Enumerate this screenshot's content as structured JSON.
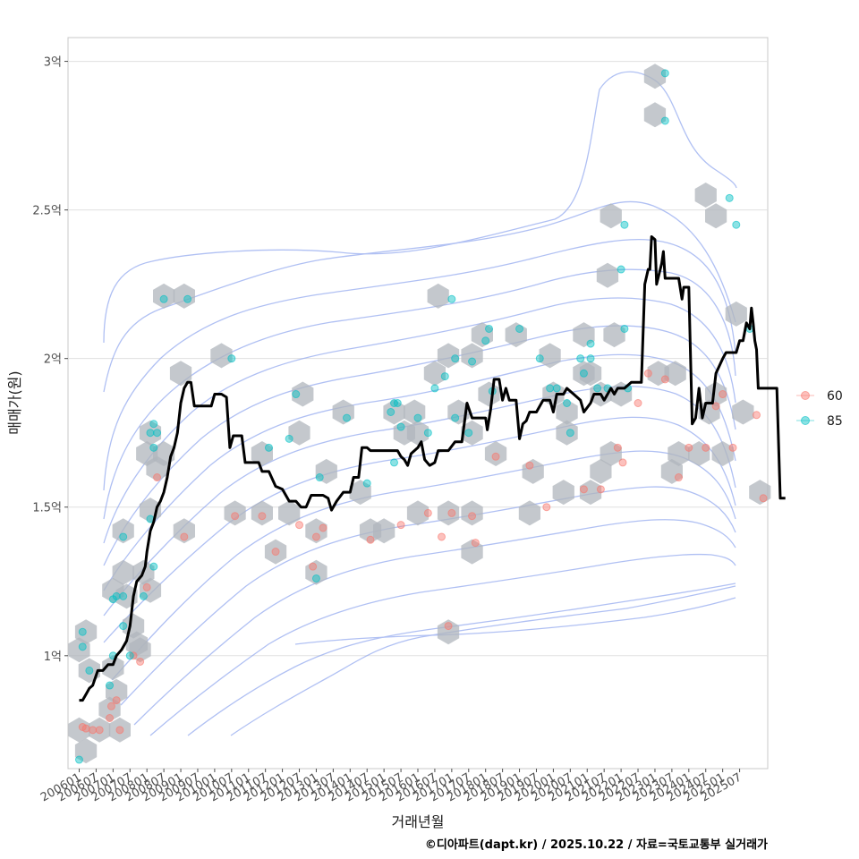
{
  "chart_data": {
    "type": "scatter",
    "xlabel": "거래년월",
    "ylabel": "매매가(원)",
    "caption": "©디아파트(dapt.kr) / 2025.10.22 / 자료=국토교통부 실거래가",
    "x_tick_labels": [
      "200601",
      "200607",
      "200701",
      "200707",
      "200801",
      "200807",
      "200901",
      "200907",
      "201001",
      "201007",
      "201101",
      "201107",
      "201201",
      "201207",
      "201301",
      "201307",
      "201401",
      "201407",
      "201501",
      "201507",
      "201601",
      "201607",
      "201701",
      "201707",
      "201801",
      "201807",
      "201901",
      "201907",
      "202001",
      "202007",
      "202101",
      "202107",
      "202201",
      "202207",
      "202301",
      "202307",
      "202401",
      "202407",
      "202501",
      "202507"
    ],
    "y_ticks": [
      {
        "value": 1.0,
        "label": "1억"
      },
      {
        "value": 1.5,
        "label": "1.5억"
      },
      {
        "value": 2.0,
        "label": "2억"
      },
      {
        "value": 2.5,
        "label": "2.5억"
      },
      {
        "value": 3.0,
        "label": "3억"
      }
    ],
    "xlim": [
      2005.67,
      2026.33
    ],
    "ylim": [
      0.62,
      3.08
    ],
    "grid": true,
    "legend": {
      "position": "right",
      "entries": [
        {
          "label": "60",
          "color": "#F8766D"
        },
        {
          "label": "85",
          "color": "#00BFC4"
        }
      ]
    },
    "colors": {
      "series_60": "#F8766D",
      "series_85": "#00BFC4",
      "trend": "#000000",
      "hexbin": "#b0b6bc",
      "contour": "#8fa6ee",
      "grid": "#e0e0e0",
      "panel_border": "#c8c8c8"
    },
    "series": [
      {
        "name": "60",
        "points": [
          [
            2006.1,
            0.76
          ],
          [
            2006.2,
            0.755
          ],
          [
            2006.4,
            0.75
          ],
          [
            2006.6,
            0.75
          ],
          [
            2006.9,
            0.79
          ],
          [
            2006.95,
            0.83
          ],
          [
            2007.1,
            0.85
          ],
          [
            2007.2,
            0.75
          ],
          [
            2007.6,
            1.0
          ],
          [
            2007.8,
            0.98
          ],
          [
            2008.0,
            1.23
          ],
          [
            2008.3,
            1.6
          ],
          [
            2009.1,
            1.4
          ],
          [
            2010.6,
            1.47
          ],
          [
            2011.4,
            1.47
          ],
          [
            2011.8,
            1.35
          ],
          [
            2012.5,
            1.44
          ],
          [
            2012.9,
            1.3
          ],
          [
            2013.0,
            1.4
          ],
          [
            2013.2,
            1.43
          ],
          [
            2014.6,
            1.39
          ],
          [
            2015.5,
            1.44
          ],
          [
            2016.3,
            1.48
          ],
          [
            2016.7,
            1.4
          ],
          [
            2016.9,
            1.1
          ],
          [
            2017.0,
            1.48
          ],
          [
            2017.6,
            1.47
          ],
          [
            2017.7,
            1.38
          ],
          [
            2018.3,
            1.67
          ],
          [
            2019.3,
            1.64
          ],
          [
            2019.8,
            1.5
          ],
          [
            2020.9,
            1.56
          ],
          [
            2021.4,
            1.56
          ],
          [
            2021.9,
            1.7
          ],
          [
            2022.05,
            1.65
          ],
          [
            2022.5,
            1.85
          ],
          [
            2022.8,
            1.95
          ],
          [
            2023.3,
            1.93
          ],
          [
            2023.7,
            1.6
          ],
          [
            2024.0,
            1.7
          ],
          [
            2024.5,
            1.7
          ],
          [
            2024.8,
            1.84
          ],
          [
            2025.0,
            1.88
          ],
          [
            2025.3,
            1.7
          ],
          [
            2026.0,
            1.81
          ],
          [
            2026.2,
            1.53
          ]
        ]
      },
      {
        "name": "85",
        "points": [
          [
            2006.0,
            0.65
          ],
          [
            2006.3,
            0.95
          ],
          [
            2006.1,
            1.08
          ],
          [
            2006.1,
            1.03
          ],
          [
            2006.9,
            0.9
          ],
          [
            2007.0,
            1.0
          ],
          [
            2007.0,
            1.19
          ],
          [
            2007.1,
            1.2
          ],
          [
            2007.3,
            1.2
          ],
          [
            2007.3,
            1.1
          ],
          [
            2007.3,
            1.4
          ],
          [
            2007.5,
            1.0
          ],
          [
            2007.9,
            1.2
          ],
          [
            2008.2,
            1.3
          ],
          [
            2008.1,
            1.46
          ],
          [
            2008.1,
            1.75
          ],
          [
            2008.2,
            1.78
          ],
          [
            2008.2,
            1.7
          ],
          [
            2008.3,
            1.75
          ],
          [
            2008.5,
            2.2
          ],
          [
            2009.2,
            2.2
          ],
          [
            2010.5,
            2.0
          ],
          [
            2011.6,
            1.7
          ],
          [
            2012.2,
            1.73
          ],
          [
            2012.4,
            1.88
          ],
          [
            2013.0,
            1.26
          ],
          [
            2013.1,
            1.6
          ],
          [
            2013.9,
            1.8
          ],
          [
            2014.5,
            1.58
          ],
          [
            2015.3,
            1.85
          ],
          [
            2015.5,
            1.77
          ],
          [
            2015.4,
            1.85
          ],
          [
            2015.2,
            1.82
          ],
          [
            2015.3,
            1.65
          ],
          [
            2016.0,
            1.8
          ],
          [
            2016.3,
            1.75
          ],
          [
            2016.5,
            1.9
          ],
          [
            2016.8,
            1.94
          ],
          [
            2017.0,
            2.2
          ],
          [
            2017.1,
            2.0
          ],
          [
            2017.1,
            1.8
          ],
          [
            2017.6,
            1.99
          ],
          [
            2017.5,
            1.75
          ],
          [
            2018.0,
            2.06
          ],
          [
            2018.1,
            2.1
          ],
          [
            2018.2,
            1.89
          ],
          [
            2019.0,
            2.1
          ],
          [
            2019.6,
            2.0
          ],
          [
            2019.9,
            1.9
          ],
          [
            2020.1,
            1.9
          ],
          [
            2020.4,
            1.85
          ],
          [
            2020.5,
            1.75
          ],
          [
            2020.8,
            2.0
          ],
          [
            2020.9,
            1.95
          ],
          [
            2021.1,
            2.0
          ],
          [
            2021.1,
            2.05
          ],
          [
            2021.3,
            1.9
          ],
          [
            2021.6,
            1.9
          ],
          [
            2022.0,
            2.3
          ],
          [
            2022.1,
            2.45
          ],
          [
            2022.1,
            2.1
          ],
          [
            2022.2,
            1.9
          ],
          [
            2023.3,
            2.96
          ],
          [
            2023.3,
            2.8
          ],
          [
            2025.2,
            2.54
          ],
          [
            2025.4,
            2.45
          ],
          [
            2025.8,
            2.1
          ]
        ]
      }
    ],
    "trend_line": [
      [
        2006.0,
        0.85
      ],
      [
        2006.1,
        0.85
      ],
      [
        2006.2,
        0.87
      ],
      [
        2006.3,
        0.89
      ],
      [
        2006.4,
        0.9
      ],
      [
        2006.55,
        0.95
      ],
      [
        2006.7,
        0.95
      ],
      [
        2006.85,
        0.97
      ],
      [
        2007.0,
        0.97
      ],
      [
        2007.1,
        1.0
      ],
      [
        2007.25,
        1.02
      ],
      [
        2007.4,
        1.05
      ],
      [
        2007.5,
        1.1
      ],
      [
        2007.6,
        1.2
      ],
      [
        2007.7,
        1.25
      ],
      [
        2007.85,
        1.27
      ],
      [
        2007.95,
        1.3
      ],
      [
        2008.0,
        1.35
      ],
      [
        2008.1,
        1.42
      ],
      [
        2008.2,
        1.45
      ],
      [
        2008.3,
        1.5
      ],
      [
        2008.4,
        1.52
      ],
      [
        2008.5,
        1.55
      ],
      [
        2008.6,
        1.6
      ],
      [
        2008.7,
        1.67
      ],
      [
        2008.8,
        1.7
      ],
      [
        2008.9,
        1.75
      ],
      [
        2009.0,
        1.85
      ],
      [
        2009.1,
        1.9
      ],
      [
        2009.2,
        1.92
      ],
      [
        2009.3,
        1.92
      ],
      [
        2009.4,
        1.84
      ],
      [
        2009.6,
        1.84
      ],
      [
        2009.9,
        1.84
      ],
      [
        2010.0,
        1.88
      ],
      [
        2010.2,
        1.88
      ],
      [
        2010.35,
        1.87
      ],
      [
        2010.45,
        1.7
      ],
      [
        2010.55,
        1.74
      ],
      [
        2010.8,
        1.74
      ],
      [
        2010.9,
        1.65
      ],
      [
        2011.3,
        1.65
      ],
      [
        2011.4,
        1.62
      ],
      [
        2011.6,
        1.62
      ],
      [
        2011.8,
        1.57
      ],
      [
        2012.0,
        1.56
      ],
      [
        2012.2,
        1.52
      ],
      [
        2012.4,
        1.52
      ],
      [
        2012.55,
        1.5
      ],
      [
        2012.7,
        1.5
      ],
      [
        2012.85,
        1.54
      ],
      [
        2013.2,
        1.54
      ],
      [
        2013.35,
        1.53
      ],
      [
        2013.45,
        1.49
      ],
      [
        2013.6,
        1.52
      ],
      [
        2013.8,
        1.55
      ],
      [
        2014.0,
        1.55
      ],
      [
        2014.1,
        1.6
      ],
      [
        2014.25,
        1.6
      ],
      [
        2014.35,
        1.7
      ],
      [
        2014.5,
        1.7
      ],
      [
        2014.6,
        1.69
      ],
      [
        2015.4,
        1.69
      ],
      [
        2015.5,
        1.67
      ],
      [
        2015.6,
        1.66
      ],
      [
        2015.7,
        1.64
      ],
      [
        2015.8,
        1.68
      ],
      [
        2016.0,
        1.7
      ],
      [
        2016.1,
        1.72
      ],
      [
        2016.2,
        1.66
      ],
      [
        2016.35,
        1.64
      ],
      [
        2016.5,
        1.65
      ],
      [
        2016.6,
        1.69
      ],
      [
        2016.9,
        1.69
      ],
      [
        2017.1,
        1.72
      ],
      [
        2017.3,
        1.72
      ],
      [
        2017.45,
        1.85
      ],
      [
        2017.6,
        1.8
      ],
      [
        2018.0,
        1.8
      ],
      [
        2018.05,
        1.76
      ],
      [
        2018.15,
        1.83
      ],
      [
        2018.25,
        1.93
      ],
      [
        2018.4,
        1.93
      ],
      [
        2018.5,
        1.86
      ],
      [
        2018.6,
        1.9
      ],
      [
        2018.7,
        1.86
      ],
      [
        2018.9,
        1.86
      ],
      [
        2019.0,
        1.73
      ],
      [
        2019.1,
        1.78
      ],
      [
        2019.2,
        1.79
      ],
      [
        2019.3,
        1.82
      ],
      [
        2019.5,
        1.82
      ],
      [
        2019.7,
        1.86
      ],
      [
        2019.9,
        1.86
      ],
      [
        2020.0,
        1.82
      ],
      [
        2020.1,
        1.88
      ],
      [
        2020.3,
        1.88
      ],
      [
        2020.4,
        1.9
      ],
      [
        2020.6,
        1.88
      ],
      [
        2020.8,
        1.86
      ],
      [
        2020.9,
        1.82
      ],
      [
        2021.1,
        1.85
      ],
      [
        2021.2,
        1.88
      ],
      [
        2021.4,
        1.88
      ],
      [
        2021.5,
        1.86
      ],
      [
        2021.7,
        1.9
      ],
      [
        2021.8,
        1.88
      ],
      [
        2021.9,
        1.9
      ],
      [
        2022.1,
        1.9
      ],
      [
        2022.3,
        1.92
      ],
      [
        2022.6,
        1.92
      ],
      [
        2022.7,
        2.25
      ],
      [
        2022.8,
        2.3
      ],
      [
        2022.85,
        2.3
      ],
      [
        2022.9,
        2.41
      ],
      [
        2023.0,
        2.4
      ],
      [
        2023.05,
        2.25
      ],
      [
        2023.2,
        2.32
      ],
      [
        2023.25,
        2.36
      ],
      [
        2023.3,
        2.27
      ],
      [
        2023.7,
        2.27
      ],
      [
        2023.8,
        2.2
      ],
      [
        2023.85,
        2.24
      ],
      [
        2024.0,
        2.24
      ],
      [
        2024.1,
        1.78
      ],
      [
        2024.2,
        1.8
      ],
      [
        2024.3,
        1.9
      ],
      [
        2024.4,
        1.8
      ],
      [
        2024.5,
        1.85
      ],
      [
        2024.7,
        1.85
      ],
      [
        2024.8,
        1.95
      ],
      [
        2025.0,
        2.0
      ],
      [
        2025.1,
        2.02
      ],
      [
        2025.4,
        2.02
      ],
      [
        2025.5,
        2.06
      ],
      [
        2025.6,
        2.06
      ],
      [
        2025.7,
        2.12
      ],
      [
        2025.8,
        2.1
      ],
      [
        2025.85,
        2.17
      ],
      [
        2025.9,
        2.12
      ],
      [
        2025.95,
        2.06
      ],
      [
        2026.0,
        2.03
      ],
      [
        2026.05,
        1.9
      ],
      [
        2026.6,
        1.9
      ],
      [
        2026.7,
        1.53
      ],
      [
        2026.85,
        1.53
      ]
    ],
    "hexbins": [
      [
        2006.0,
        0.75
      ],
      [
        2006.2,
        0.68
      ],
      [
        2006.0,
        1.02
      ],
      [
        2006.2,
        1.08
      ],
      [
        2006.3,
        0.95
      ],
      [
        2006.6,
        0.75
      ],
      [
        2006.9,
        0.82
      ],
      [
        2007.1,
        0.88
      ],
      [
        2007.2,
        0.75
      ],
      [
        2007.0,
        0.96
      ],
      [
        2007.0,
        1.22
      ],
      [
        2007.3,
        1.28
      ],
      [
        2007.3,
        1.42
      ],
      [
        2007.4,
        1.2
      ],
      [
        2007.6,
        1.1
      ],
      [
        2007.7,
        1.04
      ],
      [
        2007.8,
        1.02
      ],
      [
        2007.9,
        1.28
      ],
      [
        2008.1,
        1.22
      ],
      [
        2008.1,
        1.49
      ],
      [
        2008.1,
        1.75
      ],
      [
        2008.0,
        1.68
      ],
      [
        2008.3,
        1.63
      ],
      [
        2008.5,
        1.68
      ],
      [
        2008.5,
        2.21
      ],
      [
        2009.1,
        2.21
      ],
      [
        2009.0,
        1.95
      ],
      [
        2009.1,
        1.42
      ],
      [
        2010.2,
        2.01
      ],
      [
        2010.6,
        1.48
      ],
      [
        2011.4,
        1.68
      ],
      [
        2011.4,
        1.48
      ],
      [
        2011.8,
        1.35
      ],
      [
        2012.2,
        1.48
      ],
      [
        2012.5,
        1.75
      ],
      [
        2012.6,
        1.88
      ],
      [
        2013.0,
        1.28
      ],
      [
        2013.0,
        1.42
      ],
      [
        2013.3,
        1.62
      ],
      [
        2013.8,
        1.82
      ],
      [
        2014.3,
        1.55
      ],
      [
        2014.6,
        1.42
      ],
      [
        2015.0,
        1.42
      ],
      [
        2015.3,
        1.82
      ],
      [
        2015.6,
        1.75
      ],
      [
        2015.9,
        1.82
      ],
      [
        2016.0,
        1.75
      ],
      [
        2016.0,
        1.48
      ],
      [
        2016.5,
        1.95
      ],
      [
        2016.6,
        2.21
      ],
      [
        2016.9,
        2.01
      ],
      [
        2016.9,
        1.48
      ],
      [
        2016.9,
        1.08
      ],
      [
        2017.2,
        1.82
      ],
      [
        2017.6,
        2.01
      ],
      [
        2017.6,
        1.75
      ],
      [
        2017.6,
        1.48
      ],
      [
        2017.6,
        1.35
      ],
      [
        2017.9,
        2.08
      ],
      [
        2018.1,
        1.88
      ],
      [
        2018.3,
        1.68
      ],
      [
        2018.9,
        2.08
      ],
      [
        2019.4,
        1.62
      ],
      [
        2019.3,
        1.48
      ],
      [
        2019.9,
        2.01
      ],
      [
        2020.0,
        1.88
      ],
      [
        2020.4,
        1.82
      ],
      [
        2020.4,
        1.75
      ],
      [
        2020.3,
        1.55
      ],
      [
        2020.9,
        1.95
      ],
      [
        2020.9,
        2.08
      ],
      [
        2021.1,
        1.95
      ],
      [
        2021.1,
        1.55
      ],
      [
        2021.4,
        1.88
      ],
      [
        2021.4,
        1.62
      ],
      [
        2021.6,
        2.28
      ],
      [
        2021.7,
        2.48
      ],
      [
        2021.7,
        1.68
      ],
      [
        2021.8,
        2.08
      ],
      [
        2022.0,
        1.88
      ],
      [
        2023.0,
        2.95
      ],
      [
        2023.0,
        2.82
      ],
      [
        2023.1,
        1.95
      ],
      [
        2023.5,
        1.62
      ],
      [
        2023.6,
        1.95
      ],
      [
        2023.7,
        1.68
      ],
      [
        2024.3,
        1.68
      ],
      [
        2024.5,
        2.55
      ],
      [
        2024.6,
        1.82
      ],
      [
        2024.8,
        2.48
      ],
      [
        2024.8,
        1.88
      ],
      [
        2025.0,
        1.68
      ],
      [
        2025.4,
        2.15
      ],
      [
        2025.6,
        1.82
      ],
      [
        2026.1,
        1.55
      ]
    ]
  }
}
